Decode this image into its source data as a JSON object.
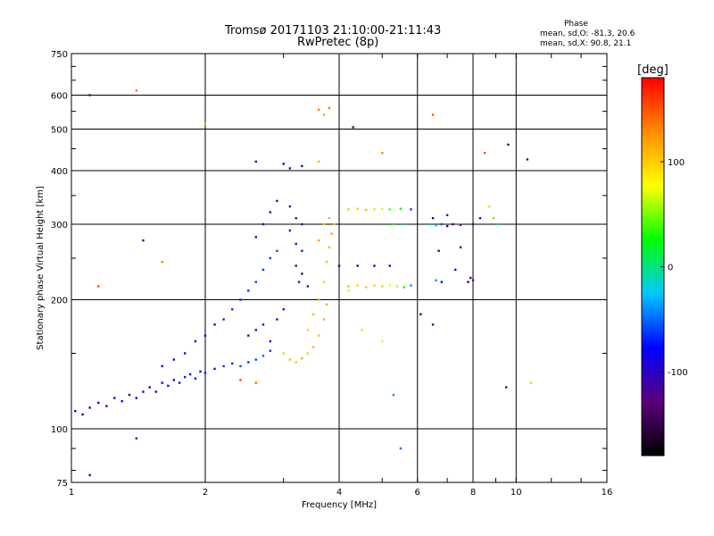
{
  "header": {
    "title_line1": "Tromsø 20171103 21:10:00-21:11:43",
    "title_line2": "RwPretec (8p)"
  },
  "phase_info": {
    "heading": "Phase",
    "line_o": "mean, sd,O: -81.3, 20.6",
    "line_x": "mean, sd,X: 90.8, 21.1"
  },
  "chart_data": {
    "type": "scatter",
    "xlabel": "Frequency [MHz]",
    "ylabel": "Stationary phase Virtual Height [km]",
    "x_scale": "log",
    "y_scale": "log",
    "xlim": [
      1,
      16
    ],
    "ylim": [
      75,
      750
    ],
    "x_ticks": [
      1,
      2,
      4,
      6,
      8,
      10,
      16
    ],
    "x_tick_labels": [
      "1",
      "2",
      "4",
      "6",
      "8",
      "10",
      "16"
    ],
    "y_ticks": [
      75,
      100,
      200,
      300,
      400,
      500,
      600,
      750
    ],
    "y_tick_labels": [
      "75",
      "100",
      "200",
      "300",
      "400",
      "500",
      "600",
      "750"
    ],
    "grid": true,
    "colorbar": {
      "label": "[deg]",
      "range": [
        -180,
        180
      ],
      "ticks": [
        100,
        0,
        -100
      ],
      "tick_labels": [
        "100",
        "0",
        "-100"
      ],
      "colors": [
        "#000000",
        "#5a007a",
        "#0000ff",
        "#00c8ff",
        "#00ff00",
        "#ffff00",
        "#ff8c00",
        "#ff0000"
      ]
    },
    "series": [
      {
        "values": [
          {
            "x": 1.02,
            "y": 110,
            "c": -100
          },
          {
            "x": 1.06,
            "y": 108,
            "c": -95
          },
          {
            "x": 1.1,
            "y": 112,
            "c": -90
          },
          {
            "x": 1.15,
            "y": 115,
            "c": -95
          },
          {
            "x": 1.2,
            "y": 113,
            "c": -85
          },
          {
            "x": 1.25,
            "y": 118,
            "c": -90
          },
          {
            "x": 1.3,
            "y": 116,
            "c": -80
          },
          {
            "x": 1.35,
            "y": 120,
            "c": -95
          },
          {
            "x": 1.4,
            "y": 118,
            "c": -85
          },
          {
            "x": 1.45,
            "y": 122,
            "c": -90
          },
          {
            "x": 1.5,
            "y": 125,
            "c": -80
          },
          {
            "x": 1.55,
            "y": 122,
            "c": -100
          },
          {
            "x": 1.6,
            "y": 128,
            "c": -85
          },
          {
            "x": 1.65,
            "y": 126,
            "c": -75
          },
          {
            "x": 1.7,
            "y": 130,
            "c": -90
          },
          {
            "x": 1.75,
            "y": 128,
            "c": -80
          },
          {
            "x": 1.8,
            "y": 132,
            "c": -70
          },
          {
            "x": 1.85,
            "y": 134,
            "c": -85
          },
          {
            "x": 1.9,
            "y": 131,
            "c": -75
          },
          {
            "x": 1.95,
            "y": 136,
            "c": -80
          },
          {
            "x": 2.0,
            "y": 135,
            "c": -70
          },
          {
            "x": 2.1,
            "y": 138,
            "c": -75
          },
          {
            "x": 2.2,
            "y": 140,
            "c": -65
          },
          {
            "x": 2.3,
            "y": 142,
            "c": -70
          },
          {
            "x": 2.4,
            "y": 140,
            "c": -60
          },
          {
            "x": 2.5,
            "y": 143,
            "c": -65
          },
          {
            "x": 2.6,
            "y": 145,
            "c": -60
          },
          {
            "x": 2.7,
            "y": 148,
            "c": -55
          },
          {
            "x": 2.8,
            "y": 152,
            "c": -60
          },
          {
            "x": 1.6,
            "y": 140,
            "c": -100
          },
          {
            "x": 1.7,
            "y": 145,
            "c": -95
          },
          {
            "x": 1.8,
            "y": 150,
            "c": -90
          },
          {
            "x": 1.9,
            "y": 160,
            "c": -85
          },
          {
            "x": 2.0,
            "y": 165,
            "c": -80
          },
          {
            "x": 2.1,
            "y": 175,
            "c": -75
          },
          {
            "x": 2.2,
            "y": 180,
            "c": -70
          },
          {
            "x": 2.3,
            "y": 190,
            "c": -65
          },
          {
            "x": 2.4,
            "y": 200,
            "c": -70
          },
          {
            "x": 2.5,
            "y": 210,
            "c": -65
          },
          {
            "x": 2.6,
            "y": 220,
            "c": -60
          },
          {
            "x": 2.7,
            "y": 235,
            "c": -65
          },
          {
            "x": 2.8,
            "y": 250,
            "c": -60
          },
          {
            "x": 2.9,
            "y": 260,
            "c": -55
          },
          {
            "x": 2.5,
            "y": 165,
            "c": -110
          },
          {
            "x": 2.6,
            "y": 170,
            "c": -115
          },
          {
            "x": 2.7,
            "y": 175,
            "c": -120
          },
          {
            "x": 2.8,
            "y": 160,
            "c": -110
          },
          {
            "x": 2.9,
            "y": 180,
            "c": -105
          },
          {
            "x": 3.0,
            "y": 190,
            "c": -100
          },
          {
            "x": 2.6,
            "y": 280,
            "c": -105
          },
          {
            "x": 2.7,
            "y": 300,
            "c": -110
          },
          {
            "x": 2.8,
            "y": 320,
            "c": -115
          },
          {
            "x": 2.9,
            "y": 340,
            "c": -100
          },
          {
            "x": 3.1,
            "y": 330,
            "c": -120
          },
          {
            "x": 3.2,
            "y": 310,
            "c": -125
          },
          {
            "x": 3.3,
            "y": 300,
            "c": -115
          },
          {
            "x": 3.1,
            "y": 290,
            "c": -110
          },
          {
            "x": 3.2,
            "y": 270,
            "c": -120
          },
          {
            "x": 3.3,
            "y": 260,
            "c": -125
          },
          {
            "x": 3.2,
            "y": 240,
            "c": -130
          },
          {
            "x": 3.3,
            "y": 230,
            "c": -135
          },
          {
            "x": 3.25,
            "y": 220,
            "c": -120
          },
          {
            "x": 3.4,
            "y": 215,
            "c": -125
          },
          {
            "x": 3.1,
            "y": 405,
            "c": -110
          },
          {
            "x": 3.3,
            "y": 410,
            "c": -120
          },
          {
            "x": 3.0,
            "y": 150,
            "c": 100
          },
          {
            "x": 3.1,
            "y": 145,
            "c": 110
          },
          {
            "x": 3.2,
            "y": 143,
            "c": 105
          },
          {
            "x": 3.3,
            "y": 146,
            "c": 115
          },
          {
            "x": 3.4,
            "y": 150,
            "c": 100
          },
          {
            "x": 3.5,
            "y": 155,
            "c": 110
          },
          {
            "x": 3.6,
            "y": 165,
            "c": 105
          },
          {
            "x": 3.7,
            "y": 180,
            "c": 110
          },
          {
            "x": 3.75,
            "y": 195,
            "c": 115
          },
          {
            "x": 3.4,
            "y": 170,
            "c": 100
          },
          {
            "x": 3.5,
            "y": 185,
            "c": 105
          },
          {
            "x": 3.6,
            "y": 200,
            "c": 110
          },
          {
            "x": 3.7,
            "y": 220,
            "c": 100
          },
          {
            "x": 3.75,
            "y": 245,
            "c": 105
          },
          {
            "x": 3.8,
            "y": 265,
            "c": 110
          },
          {
            "x": 3.85,
            "y": 285,
            "c": 115
          },
          {
            "x": 3.9,
            "y": 300,
            "c": 100
          },
          {
            "x": 3.6,
            "y": 275,
            "c": 120
          },
          {
            "x": 3.7,
            "y": 300,
            "c": 110
          },
          {
            "x": 3.8,
            "y": 310,
            "c": 115
          },
          {
            "x": 3.6,
            "y": 555,
            "c": 130
          },
          {
            "x": 3.7,
            "y": 540,
            "c": 120
          },
          {
            "x": 3.8,
            "y": 560,
            "c": 135
          },
          {
            "x": 4.2,
            "y": 215,
            "c": 110
          },
          {
            "x": 4.4,
            "y": 216,
            "c": 100
          },
          {
            "x": 4.6,
            "y": 214,
            "c": 105
          },
          {
            "x": 4.8,
            "y": 216,
            "c": 95
          },
          {
            "x": 5.0,
            "y": 215,
            "c": 100
          },
          {
            "x": 5.2,
            "y": 216,
            "c": 80
          },
          {
            "x": 5.4,
            "y": 215,
            "c": 60
          },
          {
            "x": 5.6,
            "y": 214,
            "c": 20
          },
          {
            "x": 5.8,
            "y": 216,
            "c": -40
          },
          {
            "x": 4.2,
            "y": 325,
            "c": 105
          },
          {
            "x": 4.4,
            "y": 326,
            "c": 100
          },
          {
            "x": 4.6,
            "y": 324,
            "c": 110
          },
          {
            "x": 4.8,
            "y": 325,
            "c": 90
          },
          {
            "x": 5.0,
            "y": 326,
            "c": 70
          },
          {
            "x": 5.2,
            "y": 325,
            "c": 40
          },
          {
            "x": 5.5,
            "y": 326,
            "c": 20
          },
          {
            "x": 5.8,
            "y": 325,
            "c": -60
          },
          {
            "x": 5.3,
            "y": 300,
            "c": 30
          },
          {
            "x": 5.6,
            "y": 300,
            "c": -20
          },
          {
            "x": 4.0,
            "y": 240,
            "c": -90
          },
          {
            "x": 4.4,
            "y": 240,
            "c": -100
          },
          {
            "x": 4.8,
            "y": 240,
            "c": -80
          },
          {
            "x": 5.2,
            "y": 240,
            "c": -95
          },
          {
            "x": 4.3,
            "y": 505,
            "c": -120
          },
          {
            "x": 5.0,
            "y": 440,
            "c": 130
          },
          {
            "x": 6.4,
            "y": 300,
            "c": 0
          },
          {
            "x": 6.6,
            "y": 298,
            "c": -20
          },
          {
            "x": 6.8,
            "y": 300,
            "c": -60
          },
          {
            "x": 7.0,
            "y": 297,
            "c": -100
          },
          {
            "x": 7.2,
            "y": 300,
            "c": -130
          },
          {
            "x": 7.5,
            "y": 299,
            "c": -120
          },
          {
            "x": 6.5,
            "y": 310,
            "c": -90
          },
          {
            "x": 7.0,
            "y": 315,
            "c": -110
          },
          {
            "x": 7.3,
            "y": 235,
            "c": -100
          },
          {
            "x": 6.6,
            "y": 222,
            "c": -40
          },
          {
            "x": 6.8,
            "y": 220,
            "c": -80
          },
          {
            "x": 7.8,
            "y": 220,
            "c": -150
          },
          {
            "x": 7.9,
            "y": 225,
            "c": -140
          },
          {
            "x": 8.0,
            "y": 222,
            "c": -130
          },
          {
            "x": 8.0,
            "y": 300,
            "c": -120
          },
          {
            "x": 8.3,
            "y": 310,
            "c": -100
          },
          {
            "x": 8.7,
            "y": 330,
            "c": 60
          },
          {
            "x": 8.9,
            "y": 310,
            "c": 40
          },
          {
            "x": 9.1,
            "y": 300,
            "c": 0
          },
          {
            "x": 6.7,
            "y": 260,
            "c": -110
          },
          {
            "x": 7.5,
            "y": 265,
            "c": -130
          },
          {
            "x": 6.5,
            "y": 540,
            "c": 150
          },
          {
            "x": 9.6,
            "y": 460,
            "c": -140
          },
          {
            "x": 8.5,
            "y": 440,
            "c": 150
          },
          {
            "x": 10.6,
            "y": 425,
            "c": -130
          },
          {
            "x": 9.5,
            "y": 125,
            "c": -120
          },
          {
            "x": 10.8,
            "y": 128,
            "c": 100
          },
          {
            "x": 5.5,
            "y": 90,
            "c": -50
          },
          {
            "x": 5.3,
            "y": 120,
            "c": -40
          },
          {
            "x": 4.5,
            "y": 170,
            "c": 60
          },
          {
            "x": 5.0,
            "y": 160,
            "c": 90
          },
          {
            "x": 6.1,
            "y": 185,
            "c": -150
          },
          {
            "x": 6.5,
            "y": 175,
            "c": -120
          },
          {
            "x": 1.1,
            "y": 600,
            "c": -130
          },
          {
            "x": 1.15,
            "y": 215,
            "c": 150
          },
          {
            "x": 1.4,
            "y": 615,
            "c": 140
          },
          {
            "x": 1.45,
            "y": 275,
            "c": -120
          },
          {
            "x": 1.6,
            "y": 245,
            "c": 130
          },
          {
            "x": 1.4,
            "y": 95,
            "c": -110
          },
          {
            "x": 1.1,
            "y": 78,
            "c": -90
          },
          {
            "x": 2.0,
            "y": 515,
            "c": 110
          },
          {
            "x": 2.6,
            "y": 420,
            "c": -110
          },
          {
            "x": 3.0,
            "y": 415,
            "c": -100
          },
          {
            "x": 3.6,
            "y": 420,
            "c": 110
          },
          {
            "x": 4.2,
            "y": 210,
            "c": 90
          },
          {
            "x": 2.4,
            "y": 130,
            "c": 150
          },
          {
            "x": 2.6,
            "y": 128,
            "c": 140
          }
        ]
      }
    ]
  }
}
